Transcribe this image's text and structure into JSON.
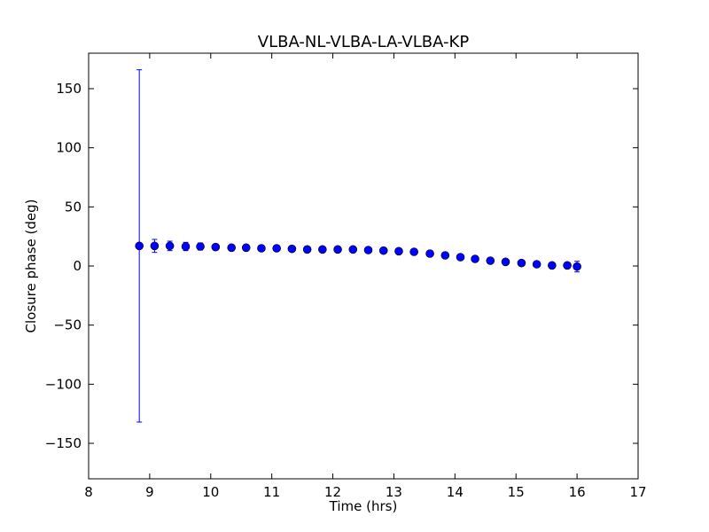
{
  "chart_data": {
    "type": "scatter",
    "title": "VLBA-NL-VLBA-LA-VLBA-KP",
    "xlabel": "Time (hrs)",
    "ylabel": "Closure phase (deg)",
    "xlim": [
      8,
      17
    ],
    "ylim": [
      -180,
      180
    ],
    "x_ticks": [
      8,
      9,
      10,
      11,
      12,
      13,
      14,
      15,
      16,
      17
    ],
    "y_ticks": [
      -150,
      -100,
      -50,
      0,
      50,
      100,
      150
    ],
    "grid": false,
    "marker_color": "#0000ff",
    "errorbar_color": "#0000ff",
    "series": [
      {
        "x": [
          8.83,
          9.08,
          9.33,
          9.59,
          9.83,
          10.08,
          10.34,
          10.58,
          10.83,
          11.08,
          11.33,
          11.58,
          11.83,
          12.08,
          12.33,
          12.58,
          12.83,
          13.08,
          13.33,
          13.59,
          13.84,
          14.09,
          14.33,
          14.58,
          14.83,
          15.09,
          15.34,
          15.59,
          15.84,
          16.0
        ],
        "y": [
          17,
          17,
          17,
          16.5,
          16.5,
          16,
          15.5,
          15.5,
          15,
          15,
          14.5,
          14,
          14,
          14,
          14,
          13.5,
          13,
          12.5,
          12,
          10.5,
          9,
          7.5,
          6,
          4.5,
          3.5,
          2.5,
          1.5,
          0.5,
          0.5,
          -0.5
        ],
        "yerr": [
          149,
          5.5,
          4,
          3.5,
          3,
          2.5,
          2.5,
          2.5,
          2.5,
          2,
          2,
          2,
          2,
          2,
          2,
          2,
          2,
          2,
          2,
          2,
          2,
          2,
          2,
          2,
          2,
          2,
          2,
          2,
          2.5,
          4.5
        ]
      }
    ]
  }
}
